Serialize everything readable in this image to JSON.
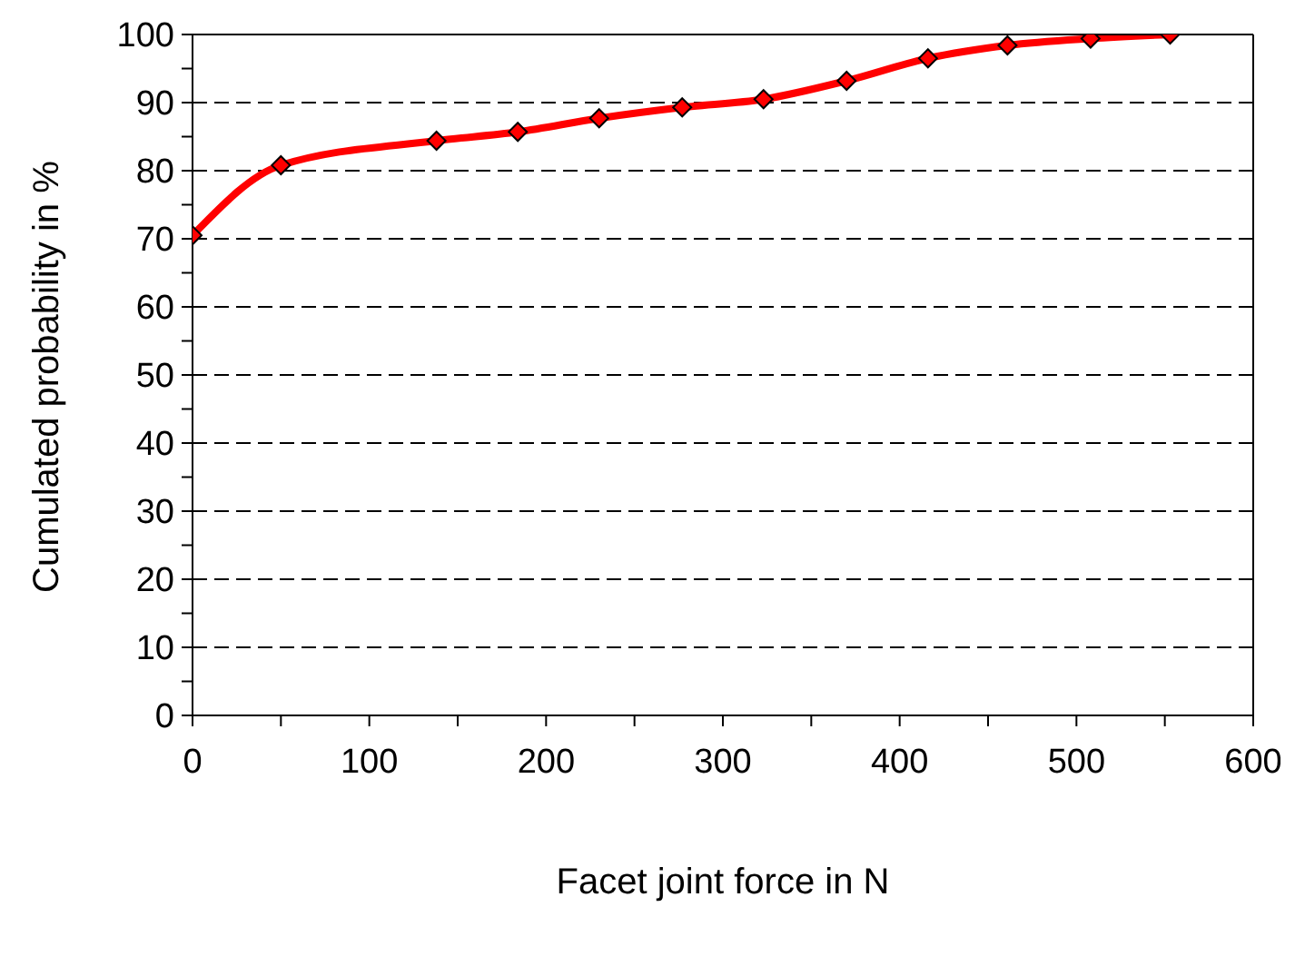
{
  "chart_data": {
    "type": "line",
    "xlabel": "Facet joint force in N",
    "ylabel": "Cumulated probability in %",
    "x": [
      0,
      50,
      138,
      184,
      230,
      277,
      323,
      370,
      416,
      461,
      508,
      553
    ],
    "series": [
      {
        "color": "#ff0000",
        "values": [
          70.5,
          80.8,
          84.4,
          85.7,
          87.7,
          89.3,
          90.5,
          93.2,
          96.5,
          98.4,
          99.4,
          100
        ]
      }
    ],
    "xlim": [
      0,
      600
    ],
    "xticks": [
      0,
      {
        "value": 50,
        "label": null
      },
      100,
      {
        "value": 150,
        "label": null
      },
      200,
      {
        "value": 250,
        "label": null
      },
      300,
      {
        "value": 350,
        "label": null
      },
      400,
      {
        "value": 450,
        "label": null
      },
      500,
      {
        "value": 550,
        "label": null
      },
      600
    ],
    "ylim": [
      0,
      100
    ],
    "yticks": [
      0,
      {
        "value": 5,
        "label": null
      },
      10,
      {
        "value": 15,
        "label": null
      },
      20,
      {
        "value": 25,
        "label": null
      },
      30,
      {
        "value": 35,
        "label": null
      },
      40,
      {
        "value": 45,
        "label": null
      },
      50,
      {
        "value": 55,
        "label": null
      },
      60,
      {
        "value": 65,
        "label": null
      },
      70,
      {
        "value": 75,
        "label": null
      },
      80,
      {
        "value": 85,
        "label": null
      },
      90,
      {
        "value": 95,
        "label": null
      },
      100
    ],
    "grid": "y",
    "marker": "diamond",
    "line_style": "solid",
    "legend": false
  }
}
